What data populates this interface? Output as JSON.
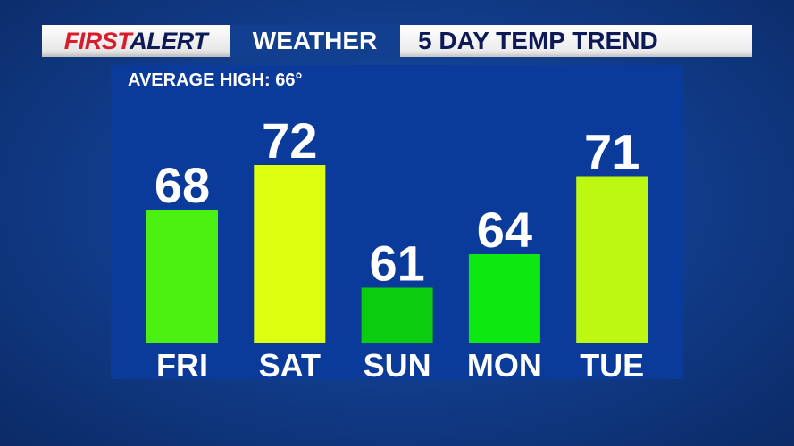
{
  "header": {
    "brand_first": "FIRST",
    "brand_alert": "ALERT",
    "section": "WEATHER",
    "title": "5 DAY TEMP TREND"
  },
  "average_label": "AVERAGE HIGH: 66°",
  "chart_data": {
    "type": "bar",
    "title": "5 DAY TEMP TREND",
    "categories": [
      "FRI",
      "SAT",
      "SUN",
      "MON",
      "TUE"
    ],
    "values": [
      68,
      72,
      61,
      64,
      71
    ],
    "colors": [
      "#4cf010",
      "#ddff10",
      "#0ccc10",
      "#0ce810",
      "#bcf812"
    ],
    "data_labels": [
      "68",
      "72",
      "61",
      "64",
      "71"
    ],
    "grid": false,
    "legend": "none"
  },
  "colors": {
    "brand_red": "#d81c2c",
    "brand_navy": "#0d1a55",
    "panel": "#0a3a9a"
  }
}
